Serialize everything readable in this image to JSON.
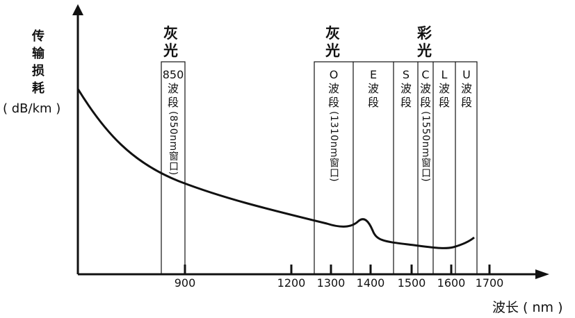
{
  "axis": {
    "y_title_chars": [
      "传",
      "输",
      "损",
      "耗"
    ],
    "y_unit": "( dB/km )",
    "x_title": "波长 ( nm )"
  },
  "x_ticks": [
    {
      "value": 900,
      "label": "900"
    },
    {
      "value": 1200,
      "label": "1200"
    },
    {
      "value": 1300,
      "label": "1300"
    },
    {
      "value": 1400,
      "label": "1400"
    },
    {
      "value": 1500,
      "label": "1500"
    },
    {
      "value": 1600,
      "label": "1600"
    },
    {
      "value": 1700,
      "label": "1700"
    }
  ],
  "groups": {
    "grey_left": [
      "灰",
      "光"
    ],
    "grey_right": [
      "灰",
      "光"
    ],
    "color_right": [
      "彩",
      "光"
    ]
  },
  "bands": {
    "b850": {
      "top": "850",
      "c1": "波",
      "c2": "段",
      "note": "(850nm窗口)"
    },
    "o": {
      "top": "O",
      "c1": "波",
      "c2": "段",
      "note": "(1310nm窗口)"
    },
    "e": {
      "top": "E",
      "c1": "波",
      "c2": "段"
    },
    "s": {
      "top": "S",
      "c1": "波",
      "c2": "段"
    },
    "c": {
      "top": "C",
      "c1": "波",
      "c2": "段",
      "note": "(1550nm窗口)"
    },
    "l": {
      "top": "L",
      "c1": "波",
      "c2": "段"
    },
    "u": {
      "top": "U",
      "c1": "波",
      "c2": "段"
    }
  }
}
